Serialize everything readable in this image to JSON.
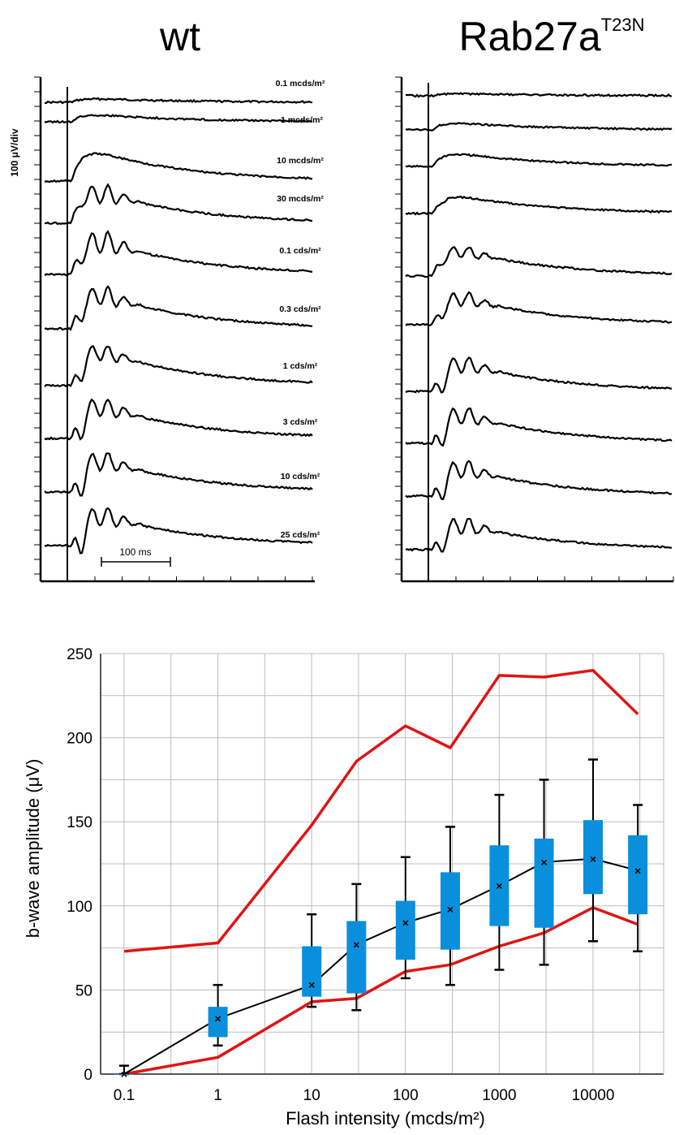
{
  "panels": {
    "left_title": "wt",
    "right_title_main": "Rab27a",
    "right_title_sup": "T23N",
    "scale_label": "100 μV/div",
    "time_scale_label": "100 ms",
    "intensity_labels": [
      "0.1 mcds/m²",
      "1 mcds/m²",
      "10 mcds/m²",
      "30 mcds/m²",
      "0.1 cds/m²",
      "0.3 cds/m²",
      "1 cds/m²",
      "3 cds/m²",
      "10 cds/m²",
      "25 cds/m²"
    ]
  },
  "chart_data": {
    "type": "box",
    "xlabel": "Flash intensity (mcds/m²)",
    "ylabel": "b-wave amplitude (μV)",
    "x_scale": "log",
    "x_ticks": [
      "0.1",
      "1",
      "10",
      "100",
      "1000",
      "10000"
    ],
    "y_ticks": [
      0,
      50,
      100,
      150,
      200,
      250
    ],
    "ylim": [
      0,
      250
    ],
    "grid": true,
    "box_color": "#0a8fdc",
    "range_color": "#e01414",
    "x": [
      0.1,
      1,
      10,
      30,
      100,
      300,
      1000,
      3000,
      10000,
      30000
    ],
    "boxes": [
      {
        "min": 0,
        "q1": 0,
        "median": 0,
        "q3": 0,
        "max": 5
      },
      {
        "min": 17,
        "q1": 22,
        "median": 33,
        "q3": 40,
        "max": 53
      },
      {
        "min": 40,
        "q1": 46,
        "median": 53,
        "q3": 76,
        "max": 95
      },
      {
        "min": 38,
        "q1": 48,
        "median": 77,
        "q3": 91,
        "max": 113
      },
      {
        "min": 57,
        "q1": 68,
        "median": 90,
        "q3": 103,
        "max": 129
      },
      {
        "min": 53,
        "q1": 74,
        "median": 98,
        "q3": 120,
        "max": 147
      },
      {
        "min": 62,
        "q1": 88,
        "median": 112,
        "q3": 136,
        "max": 166
      },
      {
        "min": 65,
        "q1": 87,
        "median": 126,
        "q3": 140,
        "max": 175
      },
      {
        "min": 79,
        "q1": 107,
        "median": 128,
        "q3": 151,
        "max": 187
      },
      {
        "min": 73,
        "q1": 95,
        "median": 121,
        "q3": 142,
        "max": 160
      }
    ],
    "upper_line": [
      73,
      78,
      148,
      186,
      207,
      194,
      237,
      236,
      240,
      214
    ],
    "lower_line": [
      0,
      10,
      43,
      45,
      61,
      65,
      76,
      84,
      99,
      89
    ]
  }
}
